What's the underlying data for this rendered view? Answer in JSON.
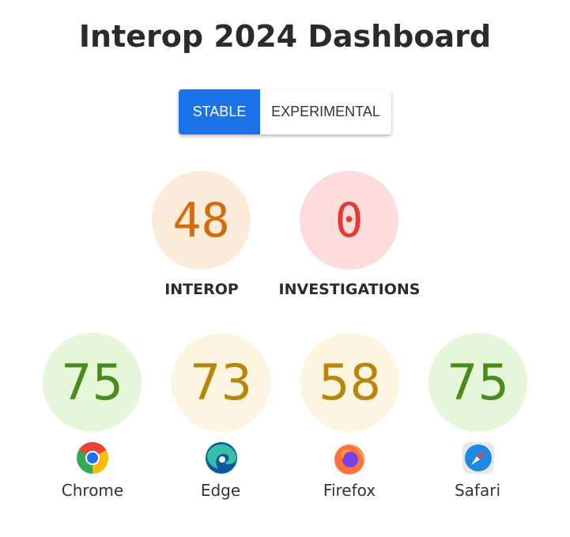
{
  "title": "Interop 2024 Dashboard",
  "toggle": {
    "options": [
      "STABLE",
      "EXPERIMENTAL"
    ],
    "selected": "STABLE"
  },
  "summary": [
    {
      "label": "INTEROP",
      "score": "48",
      "color": "#d46b08",
      "bg": "#fdebd9"
    },
    {
      "label": "INVESTIGATIONS",
      "score": "0",
      "color": "#e53935",
      "bg": "#fddcdc"
    }
  ],
  "browsers": [
    {
      "name": "Chrome",
      "score": "75",
      "icon": "chrome-icon",
      "color": "#4a8c1c",
      "bg": "#e6f6d9"
    },
    {
      "name": "Edge",
      "score": "73",
      "icon": "edge-icon",
      "color": "#b8860b",
      "bg": "#fdf5df"
    },
    {
      "name": "Firefox",
      "score": "58",
      "icon": "firefox-icon",
      "color": "#b8860b",
      "bg": "#fdf5df"
    },
    {
      "name": "Safari",
      "score": "75",
      "icon": "safari-icon",
      "color": "#4a8c1c",
      "bg": "#e6f6d9"
    }
  ]
}
